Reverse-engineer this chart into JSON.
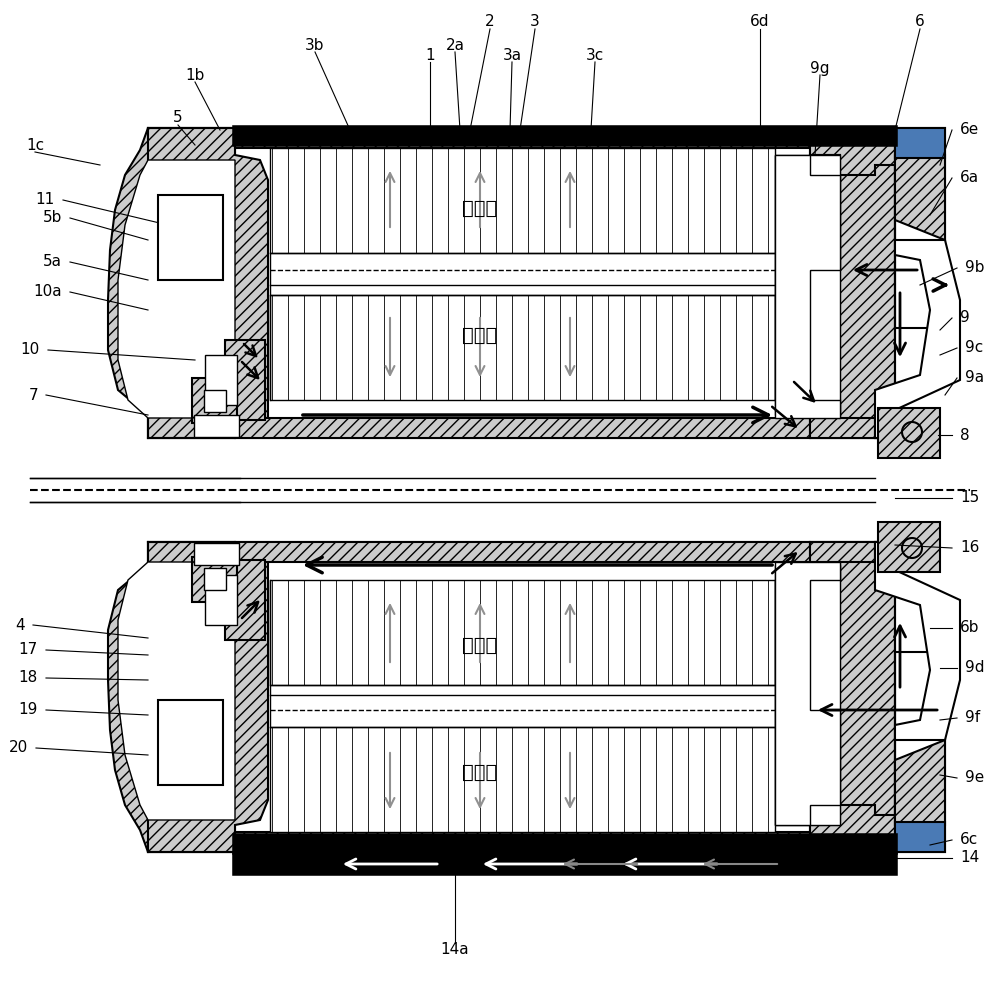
{
  "bg_color": "#ffffff",
  "line_color": "#000000",
  "labels_top": [
    [
      "1b",
      195,
      75,
      220,
      130
    ],
    [
      "3b",
      315,
      45,
      350,
      130
    ],
    [
      "2",
      490,
      22,
      470,
      130
    ],
    [
      "2a",
      455,
      45,
      460,
      130
    ],
    [
      "3",
      535,
      22,
      520,
      130
    ],
    [
      "3a",
      512,
      55,
      510,
      130
    ],
    [
      "3c",
      595,
      55,
      590,
      146
    ],
    [
      "6d",
      760,
      22,
      760,
      130
    ],
    [
      "9g",
      820,
      68,
      815,
      155
    ],
    [
      "6",
      920,
      22,
      895,
      130
    ],
    [
      "1",
      430,
      55,
      430,
      130
    ],
    [
      "5",
      178,
      118,
      195,
      145
    ],
    [
      "1c",
      35,
      145,
      100,
      165
    ]
  ],
  "labels_right": [
    [
      "6e",
      960,
      130,
      940,
      165
    ],
    [
      "6a",
      960,
      178,
      930,
      215
    ],
    [
      "9b",
      965,
      268,
      920,
      285
    ],
    [
      "9",
      960,
      318,
      940,
      330
    ],
    [
      "9c",
      965,
      348,
      940,
      355
    ],
    [
      "9a",
      965,
      378,
      945,
      395
    ],
    [
      "8",
      960,
      435,
      938,
      435
    ],
    [
      "15",
      960,
      498,
      895,
      498
    ],
    [
      "16",
      960,
      548,
      895,
      545
    ],
    [
      "6b",
      960,
      628,
      930,
      628
    ],
    [
      "9d",
      965,
      668,
      940,
      668
    ],
    [
      "9f",
      965,
      718,
      940,
      720
    ],
    [
      "9e",
      965,
      778,
      940,
      775
    ],
    [
      "6c",
      960,
      840,
      930,
      845
    ],
    [
      "14",
      960,
      858,
      895,
      858
    ]
  ],
  "labels_left": [
    [
      "11",
      55,
      200,
      168,
      225
    ],
    [
      "5b",
      62,
      218,
      148,
      240
    ],
    [
      "5a",
      62,
      262,
      148,
      280
    ],
    [
      "10a",
      62,
      292,
      148,
      310
    ],
    [
      "10",
      40,
      350,
      195,
      360
    ],
    [
      "7",
      38,
      395,
      148,
      415
    ],
    [
      "4",
      25,
      625,
      148,
      638
    ],
    [
      "17",
      38,
      650,
      148,
      655
    ],
    [
      "18",
      38,
      678,
      148,
      680
    ],
    [
      "19",
      38,
      710,
      148,
      715
    ],
    [
      "20",
      28,
      748,
      148,
      755
    ]
  ]
}
